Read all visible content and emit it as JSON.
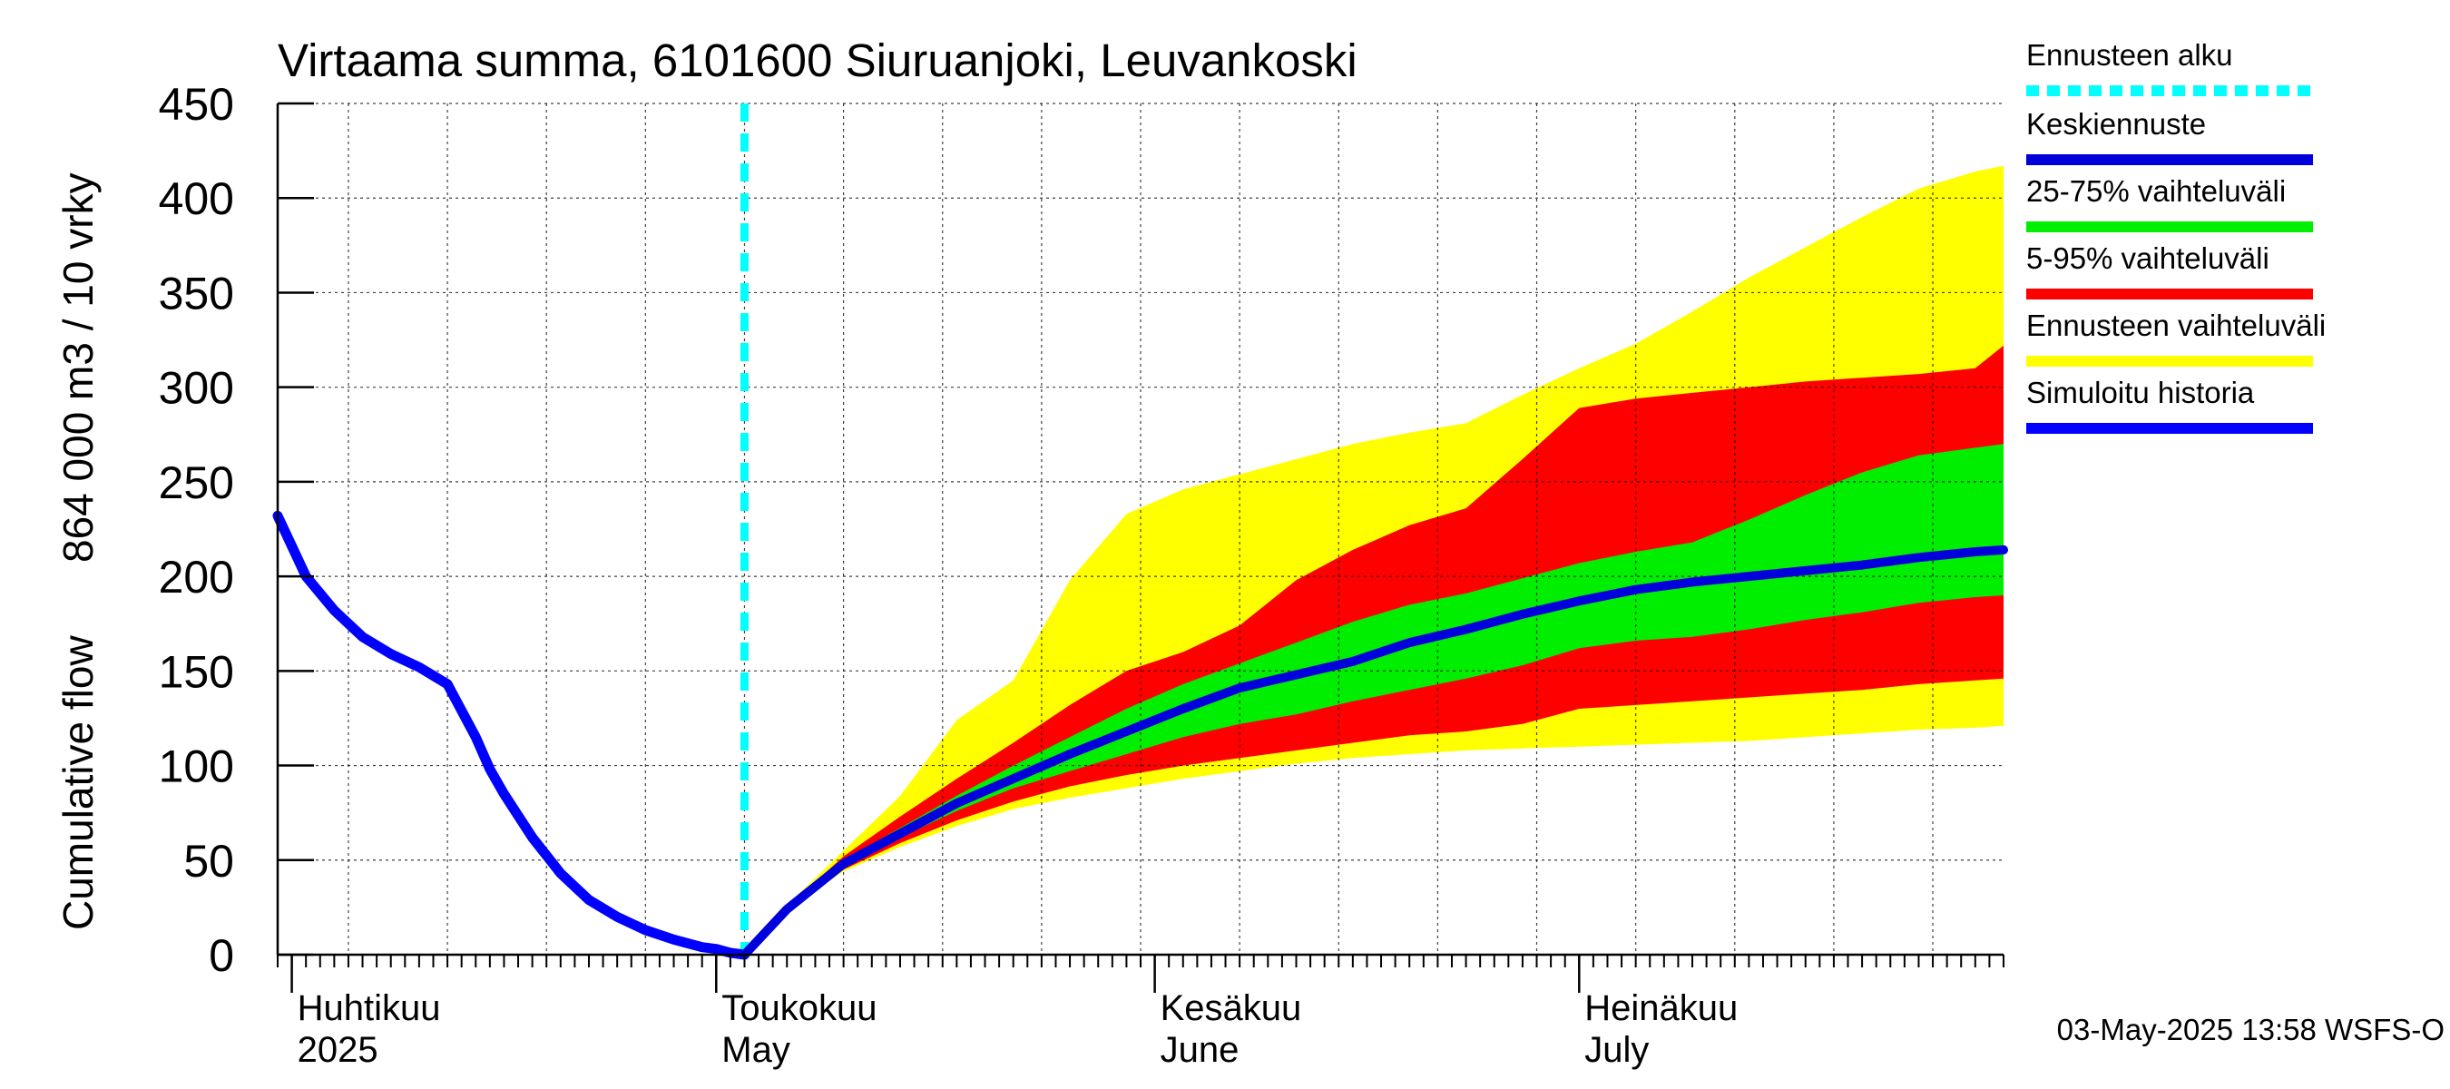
{
  "chart_data": {
    "type": "area",
    "title": "Virtaama summa, 6101600 Siuruanjoki, Leuvankoski",
    "ylabel_lines": [
      "Cumulative flow",
      "864 000 m3 / 10 vrky"
    ],
    "ylim": [
      0,
      450
    ],
    "y_ticks": [
      0,
      50,
      100,
      150,
      200,
      250,
      300,
      350,
      400,
      450
    ],
    "x_range": [
      "2025-03-31",
      "2025-07-31"
    ],
    "forecast_start": "2025-05-03",
    "x_month_labels": [
      {
        "date": "2025-04-01",
        "fi": "Huhtikuu",
        "en": "2025"
      },
      {
        "date": "2025-05-01",
        "fi": "Toukokuu",
        "en": "May"
      },
      {
        "date": "2025-06-01",
        "fi": "Kesäkuu",
        "en": "June"
      },
      {
        "date": "2025-07-01",
        "fi": "Heinäkuu",
        "en": "July"
      }
    ],
    "grid": true,
    "legend_position": "right",
    "footer": "03-May-2025 13:58 WSFS-O",
    "colors": {
      "forecast_start": "#00ffff",
      "median": "#0000dd",
      "p25_75": "#00ee00",
      "p5_95": "#ff0000",
      "range": "#ffff00",
      "history": "#0000ff"
    },
    "legend": [
      {
        "key": "forecast_start",
        "label": "Ennusteen alku",
        "style": "dashed"
      },
      {
        "key": "median",
        "label": "Keskiennuste",
        "style": "solid"
      },
      {
        "key": "p25_75",
        "label": "25-75% vaihteluväli",
        "style": "solid"
      },
      {
        "key": "p5_95",
        "label": "5-95% vaihteluväli",
        "style": "solid"
      },
      {
        "key": "range",
        "label": "Ennusteen vaihteluväli",
        "style": "solid"
      },
      {
        "key": "history",
        "label": "Simuloitu historia",
        "style": "solid"
      }
    ],
    "history": {
      "x": [
        "2025-03-31",
        "2025-04-02",
        "2025-04-04",
        "2025-04-06",
        "2025-04-08",
        "2025-04-10",
        "2025-04-12",
        "2025-04-14",
        "2025-04-15",
        "2025-04-16",
        "2025-04-18",
        "2025-04-20",
        "2025-04-22",
        "2025-04-24",
        "2025-04-26",
        "2025-04-28",
        "2025-04-30",
        "2025-05-01",
        "2025-05-02",
        "2025-05-03"
      ],
      "y": [
        232,
        200,
        182,
        168,
        159,
        152,
        143,
        115,
        98,
        85,
        62,
        43,
        29,
        20,
        13,
        8,
        4,
        3,
        1,
        0
      ]
    },
    "forecast": {
      "x": [
        "2025-05-03",
        "2025-05-06",
        "2025-05-10",
        "2025-05-14",
        "2025-05-18",
        "2025-05-22",
        "2025-05-26",
        "2025-05-30",
        "2025-06-03",
        "2025-06-07",
        "2025-06-11",
        "2025-06-15",
        "2025-06-19",
        "2025-06-23",
        "2025-06-27",
        "2025-07-01",
        "2025-07-05",
        "2025-07-09",
        "2025-07-13",
        "2025-07-17",
        "2025-07-21",
        "2025-07-25",
        "2025-07-29",
        "2025-07-31"
      ],
      "range_min": [
        0,
        24,
        44,
        57,
        68,
        77,
        83,
        88,
        93,
        97,
        101,
        104,
        106,
        108,
        109,
        110,
        111,
        112,
        113,
        115,
        117,
        119,
        120,
        121
      ],
      "p5": [
        0,
        24,
        45,
        59,
        71,
        81,
        89,
        95,
        100,
        104,
        108,
        112,
        116,
        118,
        122,
        130,
        132,
        134,
        136,
        138,
        140,
        143,
        145,
        146
      ],
      "p25": [
        0,
        24,
        47,
        62,
        76,
        88,
        97,
        106,
        115,
        122,
        127,
        134,
        140,
        146,
        153,
        162,
        166,
        168,
        172,
        177,
        181,
        186,
        189,
        190
      ],
      "median": [
        0,
        24,
        48,
        64,
        80,
        93,
        106,
        118,
        130,
        141,
        148,
        155,
        165,
        172,
        180,
        187,
        193,
        197,
        200,
        203,
        206,
        210,
        213,
        214
      ],
      "p75": [
        0,
        25,
        50,
        67,
        84,
        100,
        115,
        130,
        143,
        154,
        165,
        176,
        185,
        191,
        199,
        207,
        213,
        218,
        230,
        243,
        255,
        264,
        268,
        270
      ],
      "p95": [
        0,
        25,
        52,
        73,
        93,
        112,
        132,
        150,
        160,
        174,
        198,
        214,
        227,
        236,
        262,
        289,
        294,
        297,
        300,
        303,
        305,
        307,
        310,
        322
      ],
      "range_max": [
        0,
        26,
        55,
        84,
        124,
        145,
        198,
        233,
        246,
        254,
        262,
        270,
        276,
        281,
        296,
        310,
        323,
        340,
        358,
        374,
        390,
        405,
        414,
        417
      ]
    }
  }
}
